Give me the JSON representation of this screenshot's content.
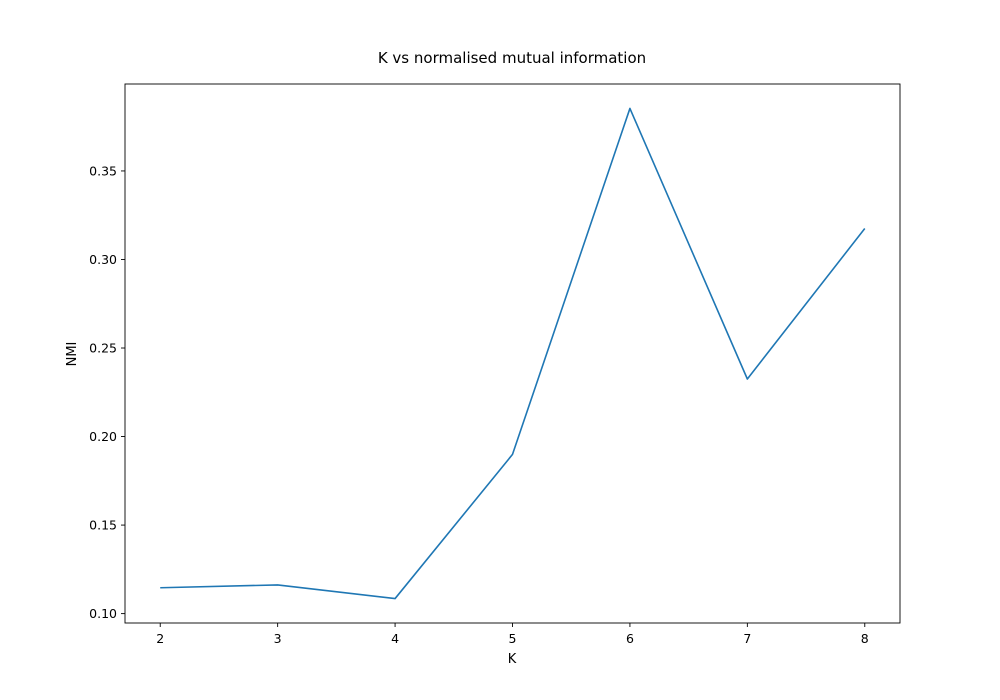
{
  "chart_data": {
    "type": "line",
    "title": "K vs normalised mutual information",
    "xlabel": "K",
    "ylabel": "NMI",
    "x": [
      2,
      3,
      4,
      5,
      6,
      7,
      8
    ],
    "series": [
      {
        "values": [
          0.1146,
          0.1162,
          0.1085,
          0.1899,
          0.3853,
          0.2325,
          0.3175
        ],
        "color": "#1f77b4"
      }
    ],
    "xlim": [
      1.7,
      8.3
    ],
    "ylim": [
      0.0947,
      0.3991
    ],
    "xticks": [
      2,
      3,
      4,
      5,
      6,
      7,
      8
    ],
    "yticks": [
      0.1,
      0.15,
      0.2,
      0.25,
      0.3,
      0.35
    ],
    "ytick_labels": [
      "0.10",
      "0.15",
      "0.20",
      "0.25",
      "0.30",
      "0.35"
    ],
    "grid": false,
    "legend": "none"
  }
}
